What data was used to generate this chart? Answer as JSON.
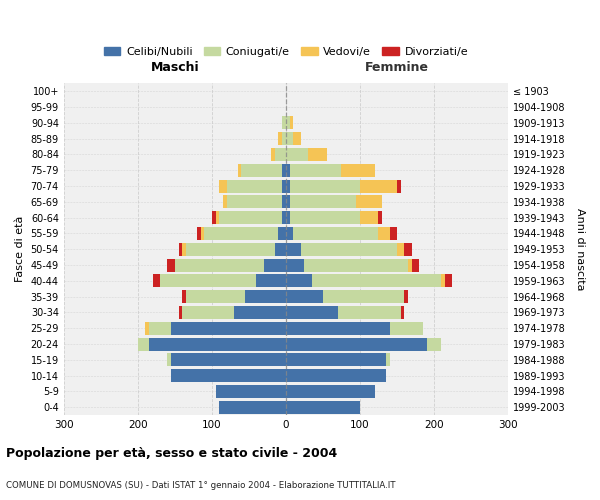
{
  "age_groups": [
    "0-4",
    "5-9",
    "10-14",
    "15-19",
    "20-24",
    "25-29",
    "30-34",
    "35-39",
    "40-44",
    "45-49",
    "50-54",
    "55-59",
    "60-64",
    "65-69",
    "70-74",
    "75-79",
    "80-84",
    "85-89",
    "90-94",
    "95-99",
    "100+"
  ],
  "birth_years": [
    "1999-2003",
    "1994-1998",
    "1989-1993",
    "1984-1988",
    "1979-1983",
    "1974-1978",
    "1969-1973",
    "1964-1968",
    "1959-1963",
    "1954-1958",
    "1949-1953",
    "1944-1948",
    "1939-1943",
    "1934-1938",
    "1929-1933",
    "1924-1928",
    "1919-1923",
    "1914-1918",
    "1909-1913",
    "1904-1908",
    "≤ 1903"
  ],
  "maschi": {
    "celibi": [
      90,
      95,
      155,
      155,
      185,
      155,
      70,
      55,
      40,
      30,
      15,
      10,
      5,
      5,
      5,
      5,
      0,
      0,
      0,
      0,
      0
    ],
    "coniugati": [
      0,
      0,
      0,
      5,
      15,
      30,
      70,
      80,
      130,
      120,
      120,
      100,
      85,
      75,
      75,
      55,
      15,
      5,
      5,
      0,
      0
    ],
    "vedovi": [
      0,
      0,
      0,
      0,
      0,
      5,
      0,
      0,
      0,
      0,
      5,
      5,
      5,
      5,
      10,
      5,
      5,
      5,
      0,
      0,
      0
    ],
    "divorziati": [
      0,
      0,
      0,
      0,
      0,
      0,
      5,
      5,
      10,
      10,
      5,
      5,
      5,
      0,
      0,
      0,
      0,
      0,
      0,
      0,
      0
    ]
  },
  "femmine": {
    "nubili": [
      100,
      120,
      135,
      135,
      190,
      140,
      70,
      50,
      35,
      25,
      20,
      10,
      5,
      5,
      5,
      5,
      0,
      0,
      0,
      0,
      0
    ],
    "coniugate": [
      0,
      0,
      0,
      5,
      20,
      45,
      85,
      110,
      175,
      140,
      130,
      115,
      95,
      90,
      95,
      70,
      30,
      10,
      5,
      0,
      0
    ],
    "vedove": [
      0,
      0,
      0,
      0,
      0,
      0,
      0,
      0,
      5,
      5,
      10,
      15,
      25,
      35,
      50,
      45,
      25,
      10,
      5,
      0,
      0
    ],
    "divorziate": [
      0,
      0,
      0,
      0,
      0,
      0,
      5,
      5,
      10,
      10,
      10,
      10,
      5,
      0,
      5,
      0,
      0,
      0,
      0,
      0,
      0
    ]
  },
  "colors": {
    "celibi_nubili": "#4472a8",
    "coniugati": "#c5d9a0",
    "vedovi": "#f5c455",
    "divorziati": "#cc2222"
  },
  "title": "Popolazione per età, sesso e stato civile - 2004",
  "subtitle": "COMUNE DI DOMUSNOVAS (SU) - Dati ISTAT 1° gennaio 2004 - Elaborazione TUTTITALIA.IT",
  "xlabel_left": "Maschi",
  "xlabel_right": "Femmine",
  "ylabel_left": "Fasce di età",
  "ylabel_right": "Anni di nascita",
  "xlim": 300,
  "legend_labels": [
    "Celibi/Nubili",
    "Coniugati/e",
    "Vedovi/e",
    "Divorziati/e"
  ],
  "bg_color": "#ffffff",
  "plot_bg": "#f0f0f0",
  "grid_color": "#cccccc"
}
